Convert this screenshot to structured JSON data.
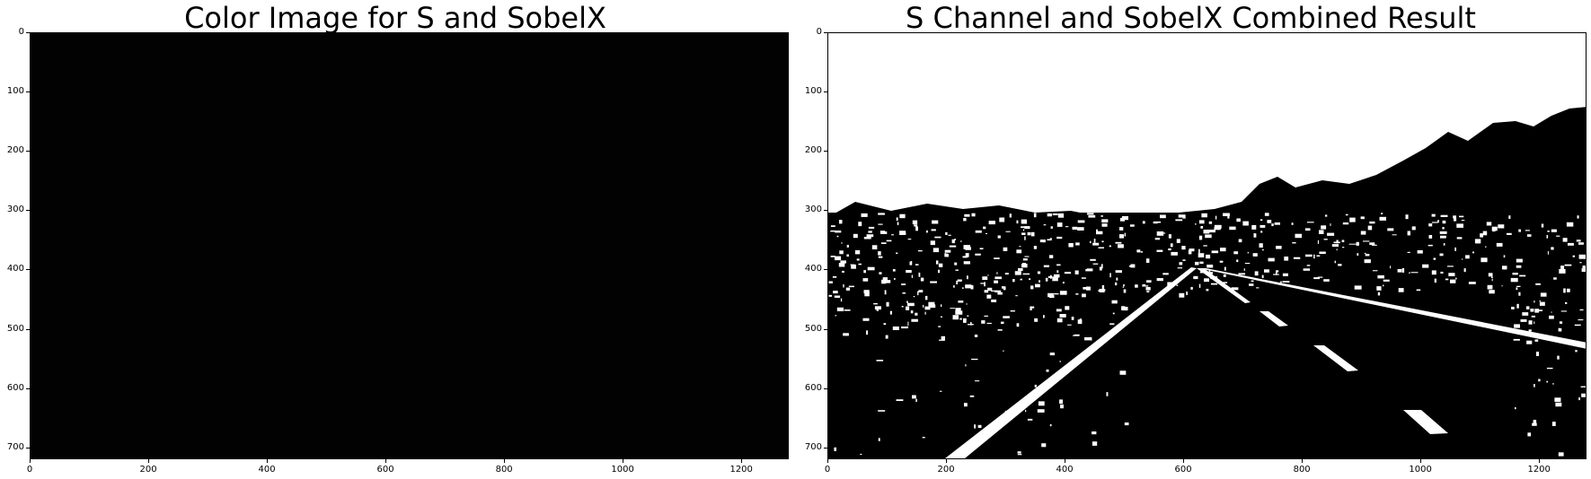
{
  "chart_data": [
    {
      "type": "image",
      "title": "Color Image for S and SobelX",
      "content": "near-black RGB image",
      "background_color": "#020202",
      "xlim": [
        0,
        1280
      ],
      "ylim": [
        720,
        0
      ],
      "xticks": [
        0,
        200,
        400,
        600,
        800,
        1000,
        1200
      ],
      "yticks": [
        0,
        100,
        200,
        300,
        400,
        500,
        600,
        700
      ]
    },
    {
      "type": "image",
      "title": "S Channel and SobelX Combined Result",
      "content": "binary mask of a road scene",
      "foreground_color": "#ffffff",
      "background_color": "#000000",
      "xlim": [
        0,
        1280
      ],
      "ylim": [
        720,
        0
      ],
      "xticks": [
        0,
        200,
        400,
        600,
        800,
        1000,
        1200
      ],
      "yticks": [
        0,
        100,
        200,
        300,
        400,
        500,
        600,
        700
      ]
    }
  ]
}
